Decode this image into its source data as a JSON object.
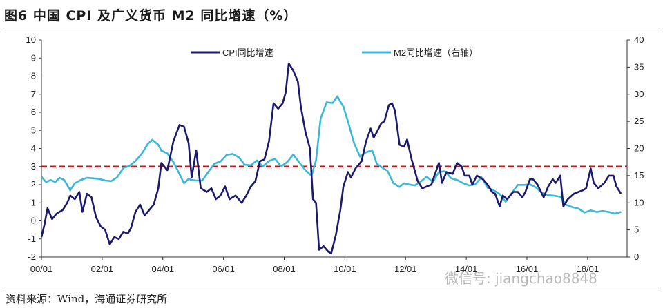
{
  "header": {
    "title": "图6  中国 CPI 及广义货币 M2 同比增速（%）"
  },
  "footer": {
    "source": "资料来源：Wind，海通证券研究所"
  },
  "watermark": {
    "text": "微信号: jiangchao8848"
  },
  "chart_data": {
    "type": "line",
    "title": "图6  中国 CPI 及广义货币 M2 同比增速（%）",
    "x_ticks": [
      "00/01",
      "02/01",
      "04/01",
      "06/01",
      "08/01",
      "10/01",
      "12/01",
      "14/01",
      "16/01",
      "18/01"
    ],
    "x_range": [
      2000.0,
      2019.3
    ],
    "y_left": {
      "range": [
        -2,
        10
      ],
      "ticks": [
        -2,
        -1,
        0,
        1,
        2,
        3,
        4,
        5,
        6,
        7,
        8,
        9,
        10
      ]
    },
    "y_right": {
      "range": [
        0,
        40
      ],
      "ticks": [
        0,
        5,
        10,
        15,
        20,
        25,
        30,
        35,
        40
      ]
    },
    "reference_line": {
      "value": 3,
      "axis": "left",
      "style": "dashed",
      "color": "#b01d1d"
    },
    "legend": {
      "position": "top-center"
    },
    "colors": {
      "cpi": "#1c1a6b",
      "m2": "#3ab8d8"
    },
    "series": [
      {
        "name": "CPI同比增速",
        "axis": "left",
        "points": [
          [
            2000.0,
            -0.9
          ],
          [
            2000.1,
            -0.2
          ],
          [
            2000.2,
            0.7
          ],
          [
            2000.35,
            0.1
          ],
          [
            2000.5,
            0.4
          ],
          [
            2000.7,
            0.6
          ],
          [
            2000.85,
            1.0
          ],
          [
            2000.95,
            1.4
          ],
          [
            2001.1,
            1.2
          ],
          [
            2001.25,
            1.6
          ],
          [
            2001.35,
            0.5
          ],
          [
            2001.5,
            1.5
          ],
          [
            2001.65,
            1.3
          ],
          [
            2001.8,
            0.2
          ],
          [
            2001.95,
            -0.3
          ],
          [
            2002.1,
            -0.5
          ],
          [
            2002.25,
            -1.3
          ],
          [
            2002.4,
            -0.9
          ],
          [
            2002.55,
            -1.0
          ],
          [
            2002.7,
            -0.6
          ],
          [
            2002.85,
            -0.7
          ],
          [
            2002.95,
            -0.4
          ],
          [
            2003.1,
            0.5
          ],
          [
            2003.25,
            0.9
          ],
          [
            2003.4,
            0.3
          ],
          [
            2003.55,
            0.6
          ],
          [
            2003.7,
            0.9
          ],
          [
            2003.85,
            1.8
          ],
          [
            2003.95,
            3.2
          ],
          [
            2004.15,
            2.8
          ],
          [
            2004.35,
            4.4
          ],
          [
            2004.55,
            5.3
          ],
          [
            2004.7,
            5.2
          ],
          [
            2004.85,
            4.3
          ],
          [
            2004.95,
            2.4
          ],
          [
            2005.1,
            3.9
          ],
          [
            2005.25,
            1.8
          ],
          [
            2005.45,
            1.6
          ],
          [
            2005.6,
            1.8
          ],
          [
            2005.75,
            1.2
          ],
          [
            2005.9,
            1.4
          ],
          [
            2006.05,
            1.9
          ],
          [
            2006.2,
            1.2
          ],
          [
            2006.4,
            1.4
          ],
          [
            2006.6,
            1.0
          ],
          [
            2006.75,
            1.4
          ],
          [
            2006.9,
            1.9
          ],
          [
            2007.05,
            2.2
          ],
          [
            2007.2,
            3.3
          ],
          [
            2007.35,
            3.4
          ],
          [
            2007.5,
            4.4
          ],
          [
            2007.65,
            6.5
          ],
          [
            2007.8,
            6.2
          ],
          [
            2007.95,
            6.5
          ],
          [
            2008.05,
            7.1
          ],
          [
            2008.15,
            8.7
          ],
          [
            2008.3,
            8.3
          ],
          [
            2008.45,
            7.7
          ],
          [
            2008.55,
            6.3
          ],
          [
            2008.7,
            4.9
          ],
          [
            2008.85,
            4.0
          ],
          [
            2008.95,
            1.2
          ],
          [
            2009.05,
            1.0
          ],
          [
            2009.15,
            -1.6
          ],
          [
            2009.3,
            -1.4
          ],
          [
            2009.45,
            -1.7
          ],
          [
            2009.55,
            -1.8
          ],
          [
            2009.7,
            -0.8
          ],
          [
            2009.85,
            0.6
          ],
          [
            2009.95,
            1.9
          ],
          [
            2010.1,
            2.7
          ],
          [
            2010.2,
            2.4
          ],
          [
            2010.35,
            2.9
          ],
          [
            2010.55,
            3.3
          ],
          [
            2010.7,
            4.4
          ],
          [
            2010.85,
            5.1
          ],
          [
            2010.95,
            4.6
          ],
          [
            2011.05,
            4.9
          ],
          [
            2011.2,
            5.4
          ],
          [
            2011.3,
            5.5
          ],
          [
            2011.45,
            6.4
          ],
          [
            2011.55,
            6.5
          ],
          [
            2011.65,
            6.1
          ],
          [
            2011.8,
            4.2
          ],
          [
            2011.95,
            4.1
          ],
          [
            2012.05,
            4.5
          ],
          [
            2012.2,
            3.4
          ],
          [
            2012.4,
            2.2
          ],
          [
            2012.55,
            1.8
          ],
          [
            2012.7,
            1.9
          ],
          [
            2012.85,
            2.0
          ],
          [
            2012.95,
            2.5
          ],
          [
            2013.1,
            3.2
          ],
          [
            2013.2,
            2.1
          ],
          [
            2013.35,
            2.7
          ],
          [
            2013.55,
            2.6
          ],
          [
            2013.7,
            3.2
          ],
          [
            2013.85,
            3.0
          ],
          [
            2013.95,
            2.5
          ],
          [
            2014.1,
            2.5
          ],
          [
            2014.2,
            2.0
          ],
          [
            2014.35,
            2.5
          ],
          [
            2014.55,
            2.3
          ],
          [
            2014.7,
            2.0
          ],
          [
            2014.85,
            1.6
          ],
          [
            2014.95,
            1.5
          ],
          [
            2015.1,
            0.8
          ],
          [
            2015.2,
            1.4
          ],
          [
            2015.35,
            1.2
          ],
          [
            2015.55,
            1.6
          ],
          [
            2015.7,
            1.6
          ],
          [
            2015.85,
            1.3
          ],
          [
            2015.95,
            1.6
          ],
          [
            2016.1,
            2.3
          ],
          [
            2016.2,
            2.3
          ],
          [
            2016.35,
            2.0
          ],
          [
            2016.55,
            1.3
          ],
          [
            2016.7,
            1.9
          ],
          [
            2016.85,
            2.3
          ],
          [
            2016.95,
            2.1
          ],
          [
            2017.1,
            2.5
          ],
          [
            2017.2,
            0.8
          ],
          [
            2017.35,
            1.2
          ],
          [
            2017.55,
            1.5
          ],
          [
            2017.7,
            1.6
          ],
          [
            2017.85,
            1.7
          ],
          [
            2017.95,
            1.8
          ],
          [
            2018.1,
            2.9
          ],
          [
            2018.2,
            2.1
          ],
          [
            2018.35,
            1.8
          ],
          [
            2018.55,
            2.1
          ],
          [
            2018.7,
            2.5
          ],
          [
            2018.85,
            2.5
          ],
          [
            2018.95,
            1.9
          ],
          [
            2019.1,
            1.5
          ]
        ]
      },
      {
        "name": "M2同比增速（右轴）",
        "axis": "right",
        "points": [
          [
            2000.0,
            14.8
          ],
          [
            2000.15,
            13.8
          ],
          [
            2000.3,
            14.2
          ],
          [
            2000.45,
            13.8
          ],
          [
            2000.6,
            14.6
          ],
          [
            2000.75,
            14.2
          ],
          [
            2000.95,
            12.3
          ],
          [
            2001.1,
            13.6
          ],
          [
            2001.3,
            14.2
          ],
          [
            2001.5,
            14.6
          ],
          [
            2001.7,
            14.5
          ],
          [
            2001.9,
            14.4
          ],
          [
            2002.1,
            14.1
          ],
          [
            2002.3,
            14.0
          ],
          [
            2002.5,
            14.7
          ],
          [
            2002.7,
            16.4
          ],
          [
            2002.9,
            16.8
          ],
          [
            2003.1,
            17.7
          ],
          [
            2003.3,
            19.0
          ],
          [
            2003.5,
            20.8
          ],
          [
            2003.65,
            21.6
          ],
          [
            2003.85,
            20.7
          ],
          [
            2003.95,
            19.6
          ],
          [
            2004.15,
            19.1
          ],
          [
            2004.35,
            17.5
          ],
          [
            2004.55,
            15.3
          ],
          [
            2004.7,
            13.6
          ],
          [
            2004.85,
            14.4
          ],
          [
            2004.95,
            14.2
          ],
          [
            2005.1,
            14.1
          ],
          [
            2005.3,
            14.1
          ],
          [
            2005.5,
            15.7
          ],
          [
            2005.7,
            17.2
          ],
          [
            2005.9,
            17.6
          ],
          [
            2006.1,
            18.8
          ],
          [
            2006.3,
            19.0
          ],
          [
            2006.5,
            18.4
          ],
          [
            2006.7,
            17.0
          ],
          [
            2006.9,
            16.9
          ],
          [
            2007.1,
            17.8
          ],
          [
            2007.3,
            16.7
          ],
          [
            2007.5,
            17.7
          ],
          [
            2007.7,
            18.1
          ],
          [
            2007.9,
            16.7
          ],
          [
            2008.1,
            17.5
          ],
          [
            2008.3,
            18.9
          ],
          [
            2008.5,
            17.4
          ],
          [
            2008.7,
            16.0
          ],
          [
            2008.9,
            15.0
          ],
          [
            2009.05,
            17.8
          ],
          [
            2009.2,
            25.5
          ],
          [
            2009.4,
            28.5
          ],
          [
            2009.6,
            28.4
          ],
          [
            2009.75,
            29.6
          ],
          [
            2009.95,
            27.7
          ],
          [
            2010.1,
            25.0
          ],
          [
            2010.3,
            21.0
          ],
          [
            2010.5,
            18.5
          ],
          [
            2010.7,
            19.3
          ],
          [
            2010.9,
            19.7
          ],
          [
            2011.05,
            17.2
          ],
          [
            2011.2,
            16.6
          ],
          [
            2011.4,
            15.9
          ],
          [
            2011.6,
            13.6
          ],
          [
            2011.8,
            12.9
          ],
          [
            2011.95,
            13.6
          ],
          [
            2012.1,
            13.4
          ],
          [
            2012.3,
            13.2
          ],
          [
            2012.5,
            13.9
          ],
          [
            2012.7,
            14.8
          ],
          [
            2012.9,
            13.8
          ],
          [
            2013.1,
            15.7
          ],
          [
            2013.3,
            15.8
          ],
          [
            2013.5,
            14.5
          ],
          [
            2013.7,
            14.2
          ],
          [
            2013.9,
            13.6
          ],
          [
            2014.1,
            13.2
          ],
          [
            2014.3,
            13.4
          ],
          [
            2014.5,
            14.7
          ],
          [
            2014.7,
            12.8
          ],
          [
            2014.9,
            12.3
          ],
          [
            2015.1,
            11.6
          ],
          [
            2015.3,
            10.2
          ],
          [
            2015.5,
            11.8
          ],
          [
            2015.7,
            13.3
          ],
          [
            2015.9,
            13.3
          ],
          [
            2016.1,
            13.4
          ],
          [
            2016.3,
            12.8
          ],
          [
            2016.5,
            11.8
          ],
          [
            2016.7,
            11.4
          ],
          [
            2016.9,
            11.3
          ],
          [
            2017.1,
            11.1
          ],
          [
            2017.3,
            9.6
          ],
          [
            2017.5,
            9.2
          ],
          [
            2017.7,
            8.9
          ],
          [
            2017.9,
            8.2
          ],
          [
            2018.1,
            8.6
          ],
          [
            2018.3,
            8.3
          ],
          [
            2018.5,
            8.5
          ],
          [
            2018.7,
            8.3
          ],
          [
            2018.9,
            8.0
          ],
          [
            2019.1,
            8.3
          ]
        ]
      }
    ]
  }
}
